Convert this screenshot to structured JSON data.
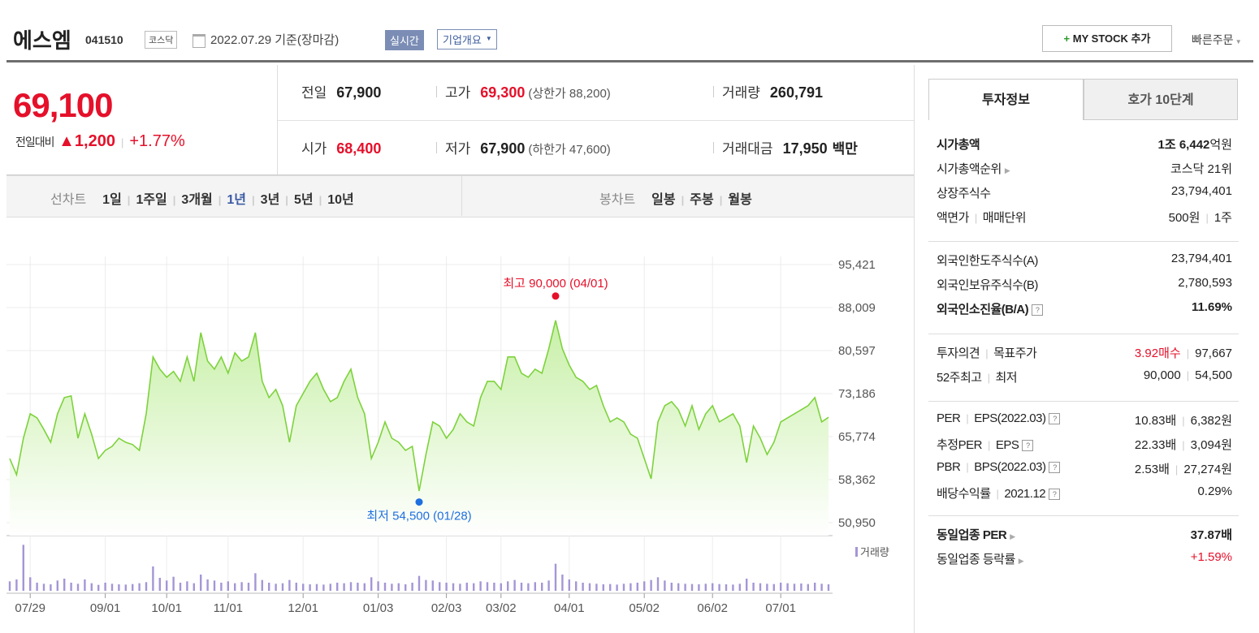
{
  "header": {
    "name": "에스엠",
    "code": "041510",
    "market": "코스닥",
    "date": "2022.07.29 기준(장마감)",
    "badge_realtime": "실시간",
    "badge_company": "기업개요",
    "my_stock": "MY STOCK 추가",
    "quick_order": "빠른주문"
  },
  "quote": {
    "price": "69,100",
    "change_label": "전일대비",
    "change": "1,200",
    "change_pct": "+1.77%",
    "fields": [
      {
        "label": "전일",
        "value": "67,900"
      },
      {
        "label": "고가",
        "value": "69,300",
        "note": "(상한가 88,200)",
        "red": true
      },
      {
        "label": "거래량",
        "value": "260,791"
      },
      {
        "label": "시가",
        "value": "68,400",
        "red": true
      },
      {
        "label": "저가",
        "value": "67,900",
        "note": "(하한가 47,600)"
      },
      {
        "label": "거래대금",
        "value": "17,950",
        "unit": "백만"
      }
    ]
  },
  "tabs": {
    "line_label": "선차트",
    "line_periods": [
      "1일",
      "1주일",
      "3개월",
      "1년",
      "3년",
      "5년",
      "10년"
    ],
    "active_period": 3,
    "candle_label": "봉차트",
    "candle_periods": [
      "일봉",
      "주봉",
      "월봉"
    ]
  },
  "side": {
    "tabs": [
      "투자정보",
      "호가 10단계"
    ],
    "active_tab": 0,
    "groups": [
      [
        {
          "label": [
            {
              "text": "시가총액",
              "bold": true
            }
          ],
          "value": [
            {
              "text": "1조 6,442",
              "bold": true
            },
            {
              "text": "억원",
              "join": true
            }
          ]
        },
        {
          "label": [
            {
              "text": "시가총액순위",
              "arrow": true
            }
          ],
          "value": [
            {
              "text": "코스닥 21위"
            }
          ]
        },
        {
          "label": [
            {
              "text": "상장주식수"
            }
          ],
          "value": [
            {
              "text": "23,794,401"
            }
          ]
        },
        {
          "label": [
            {
              "text": "액면가"
            },
            {
              "text": "매매단위"
            }
          ],
          "value": [
            {
              "text": "500원"
            },
            {
              "text": "1주"
            }
          ]
        }
      ],
      [
        {
          "label": [
            {
              "text": "외국인한도주식수(A)"
            }
          ],
          "value": [
            {
              "text": "23,794,401"
            }
          ]
        },
        {
          "label": [
            {
              "text": "외국인보유주식수(B)"
            }
          ],
          "value": [
            {
              "text": "2,780,593"
            }
          ]
        },
        {
          "label": [
            {
              "text": "외국인소진율(B/A)",
              "bold": true,
              "help": true
            }
          ],
          "value": [
            {
              "text": "11.69%",
              "bold": true
            }
          ]
        }
      ],
      [
        {
          "label": [
            {
              "text": "투자의견"
            },
            {
              "text": "목표주가"
            }
          ],
          "value": [
            {
              "text": "3.92매수",
              "red": true
            },
            {
              "text": "97,667"
            }
          ]
        },
        {
          "label": [
            {
              "text": "52주최고"
            },
            {
              "text": "최저"
            }
          ],
          "value": [
            {
              "text": "90,000"
            },
            {
              "text": "54,500"
            }
          ]
        }
      ],
      [
        {
          "label": [
            {
              "text": "PER"
            },
            {
              "text": "EPS(2022.03)",
              "help": true
            }
          ],
          "value": [
            {
              "text": "10.83배"
            },
            {
              "text": "6,382원"
            }
          ]
        },
        {
          "label": [
            {
              "text": "추정PER"
            },
            {
              "text": "EPS",
              "help": true
            }
          ],
          "value": [
            {
              "text": "22.33배"
            },
            {
              "text": "3,094원"
            }
          ]
        },
        {
          "label": [
            {
              "text": "PBR"
            },
            {
              "text": "BPS(2022.03)",
              "help": true
            }
          ],
          "value": [
            {
              "text": "2.53배"
            },
            {
              "text": "27,274원"
            }
          ]
        },
        {
          "label": [
            {
              "text": "배당수익률"
            },
            {
              "text": "2021.12",
              "help": true
            }
          ],
          "value": [
            {
              "text": "0.29%"
            }
          ]
        }
      ],
      [
        {
          "label": [
            {
              "text": "동일업종 PER",
              "bold": true,
              "arrow": true
            }
          ],
          "value": [
            {
              "text": "37.87배",
              "bold": true
            }
          ]
        },
        {
          "label": [
            {
              "text": "동일업종 등락률",
              "arrow": true
            }
          ],
          "value": [
            {
              "text": "+1.59%",
              "red": true
            }
          ]
        }
      ]
    ]
  },
  "chart_data": {
    "type": "line",
    "grid": true,
    "categories": [
      null,
      null,
      null,
      "07/29",
      null,
      null,
      null,
      null,
      null,
      null,
      null,
      null,
      null,
      null,
      "09/01",
      null,
      null,
      null,
      null,
      null,
      null,
      null,
      null,
      "10/01",
      null,
      null,
      null,
      null,
      null,
      null,
      null,
      null,
      "11/01",
      null,
      null,
      null,
      null,
      null,
      null,
      null,
      null,
      null,
      null,
      "12/01",
      null,
      null,
      null,
      null,
      null,
      null,
      null,
      null,
      null,
      null,
      "01/03",
      null,
      null,
      null,
      null,
      null,
      null,
      null,
      null,
      null,
      "02/03",
      null,
      null,
      null,
      null,
      null,
      null,
      null,
      "03/02",
      null,
      null,
      null,
      null,
      null,
      null,
      null,
      null,
      null,
      "04/01",
      null,
      null,
      null,
      null,
      null,
      null,
      null,
      null,
      null,
      null,
      "05/02",
      null,
      null,
      null,
      null,
      null,
      null,
      null,
      null,
      null,
      "06/02",
      null,
      null,
      null,
      null,
      null,
      null,
      null,
      null,
      null,
      "07/01",
      null,
      null,
      null,
      null,
      null,
      null,
      null
    ],
    "series": [
      {
        "color": "#7dd23c",
        "values": [
          62000,
          59200,
          65500,
          69700,
          69000,
          67000,
          64800,
          69700,
          72500,
          72800,
          65500,
          69700,
          66200,
          62000,
          63400,
          64100,
          65500,
          64800,
          64400,
          63400,
          69700,
          79500,
          77400,
          76000,
          77000,
          75300,
          79500,
          75300,
          83700,
          78800,
          77400,
          79500,
          76700,
          80200,
          78800,
          79500,
          83700,
          75300,
          72500,
          73900,
          71100,
          64800,
          71100,
          73200,
          75300,
          76700,
          73900,
          71800,
          72500,
          75300,
          77400,
          72500,
          69700,
          62000,
          64800,
          68300,
          65500,
          64800,
          63400,
          64100,
          56400,
          62700,
          68300,
          67600,
          65500,
          67000,
          69700,
          68300,
          67600,
          72500,
          75300,
          75300,
          73900,
          79500,
          79500,
          76700,
          76000,
          77400,
          76700,
          80900,
          85800,
          80900,
          78100,
          76000,
          75300,
          73900,
          74600,
          71100,
          68300,
          69000,
          68300,
          66200,
          65500,
          62000,
          58500,
          68300,
          71100,
          71800,
          70400,
          67600,
          71100,
          67000,
          69700,
          71100,
          68300,
          69000,
          69700,
          67600,
          61300,
          67600,
          65500,
          62700,
          64800,
          68300,
          69000,
          69700,
          70400,
          71100,
          72500,
          68300,
          69100
        ]
      },
      {
        "name": "거래량",
        "color": "#a596d6",
        "axis": "y2",
        "values": [
          350000,
          420000,
          1700000,
          500000,
          300000,
          260000,
          240000,
          380000,
          450000,
          300000,
          260000,
          420000,
          280000,
          220000,
          300000,
          260000,
          240000,
          230000,
          250000,
          280000,
          320000,
          900000,
          480000,
          380000,
          520000,
          300000,
          350000,
          280000,
          600000,
          420000,
          380000,
          300000,
          350000,
          280000,
          320000,
          300000,
          650000,
          400000,
          300000,
          260000,
          280000,
          400000,
          300000,
          260000,
          240000,
          250000,
          230000,
          260000,
          300000,
          280000,
          320000,
          300000,
          280000,
          500000,
          350000,
          300000,
          260000,
          280000,
          240000,
          300000,
          550000,
          400000,
          380000,
          320000,
          300000,
          280000,
          260000,
          300000,
          280000,
          350000,
          320000,
          300000,
          280000,
          350000,
          400000,
          300000,
          280000,
          320000,
          300000,
          380000,
          1000000,
          600000,
          420000,
          350000,
          300000,
          280000,
          260000,
          240000,
          250000,
          230000,
          260000,
          280000,
          300000,
          350000,
          400000,
          500000,
          380000,
          300000,
          280000,
          260000,
          250000,
          240000,
          260000,
          280000,
          250000,
          240000,
          230000,
          260000,
          450000,
          300000,
          280000,
          260000,
          250000,
          300000,
          280000,
          260000,
          270000,
          250000,
          300000,
          260000,
          240000
        ]
      }
    ],
    "ylim": [
      50950,
      95421
    ],
    "yticks": [
      {
        "value": 50950,
        "label": "50,950"
      },
      {
        "value": 58362,
        "label": "58,362"
      },
      {
        "value": 65774,
        "label": "65,774"
      },
      {
        "value": 73186,
        "label": "73,186"
      },
      {
        "value": 80597,
        "label": "80,597"
      },
      {
        "value": 88009,
        "label": "88,009"
      },
      {
        "value": 95421,
        "label": "95,421"
      }
    ],
    "y2lim": [
      0,
      1800000
    ],
    "annotations": [
      {
        "text": "최고 90,000 (04/01)",
        "value": 90000,
        "color": "#e5102a"
      },
      {
        "text": "최저 54,500 (01/28)",
        "value": 54500,
        "color": "#1f6fe0"
      }
    ]
  }
}
